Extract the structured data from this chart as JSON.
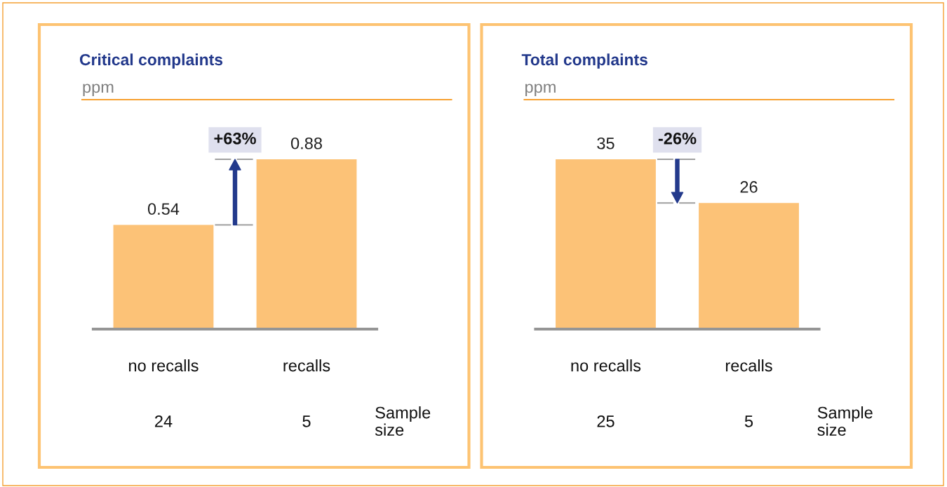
{
  "chart_data": [
    {
      "type": "bar",
      "title": "Critical complaints",
      "subtitle": "ppm",
      "categories": [
        "no recalls",
        "recalls"
      ],
      "values": [
        0.54,
        0.88
      ],
      "color": "#fcc277",
      "data_labels": true,
      "annotations": [
        "+63%",
        "24",
        "5",
        "Sample size"
      ]
    },
    {
      "type": "bar",
      "title": "Total complaints",
      "subtitle": "ppm",
      "categories": [
        "no recalls",
        "recalls"
      ],
      "values": [
        35,
        26
      ],
      "color": "#fcc277",
      "data_labels": true,
      "annotations": [
        "-26%",
        "25",
        "5",
        "Sample size"
      ]
    }
  ]
}
